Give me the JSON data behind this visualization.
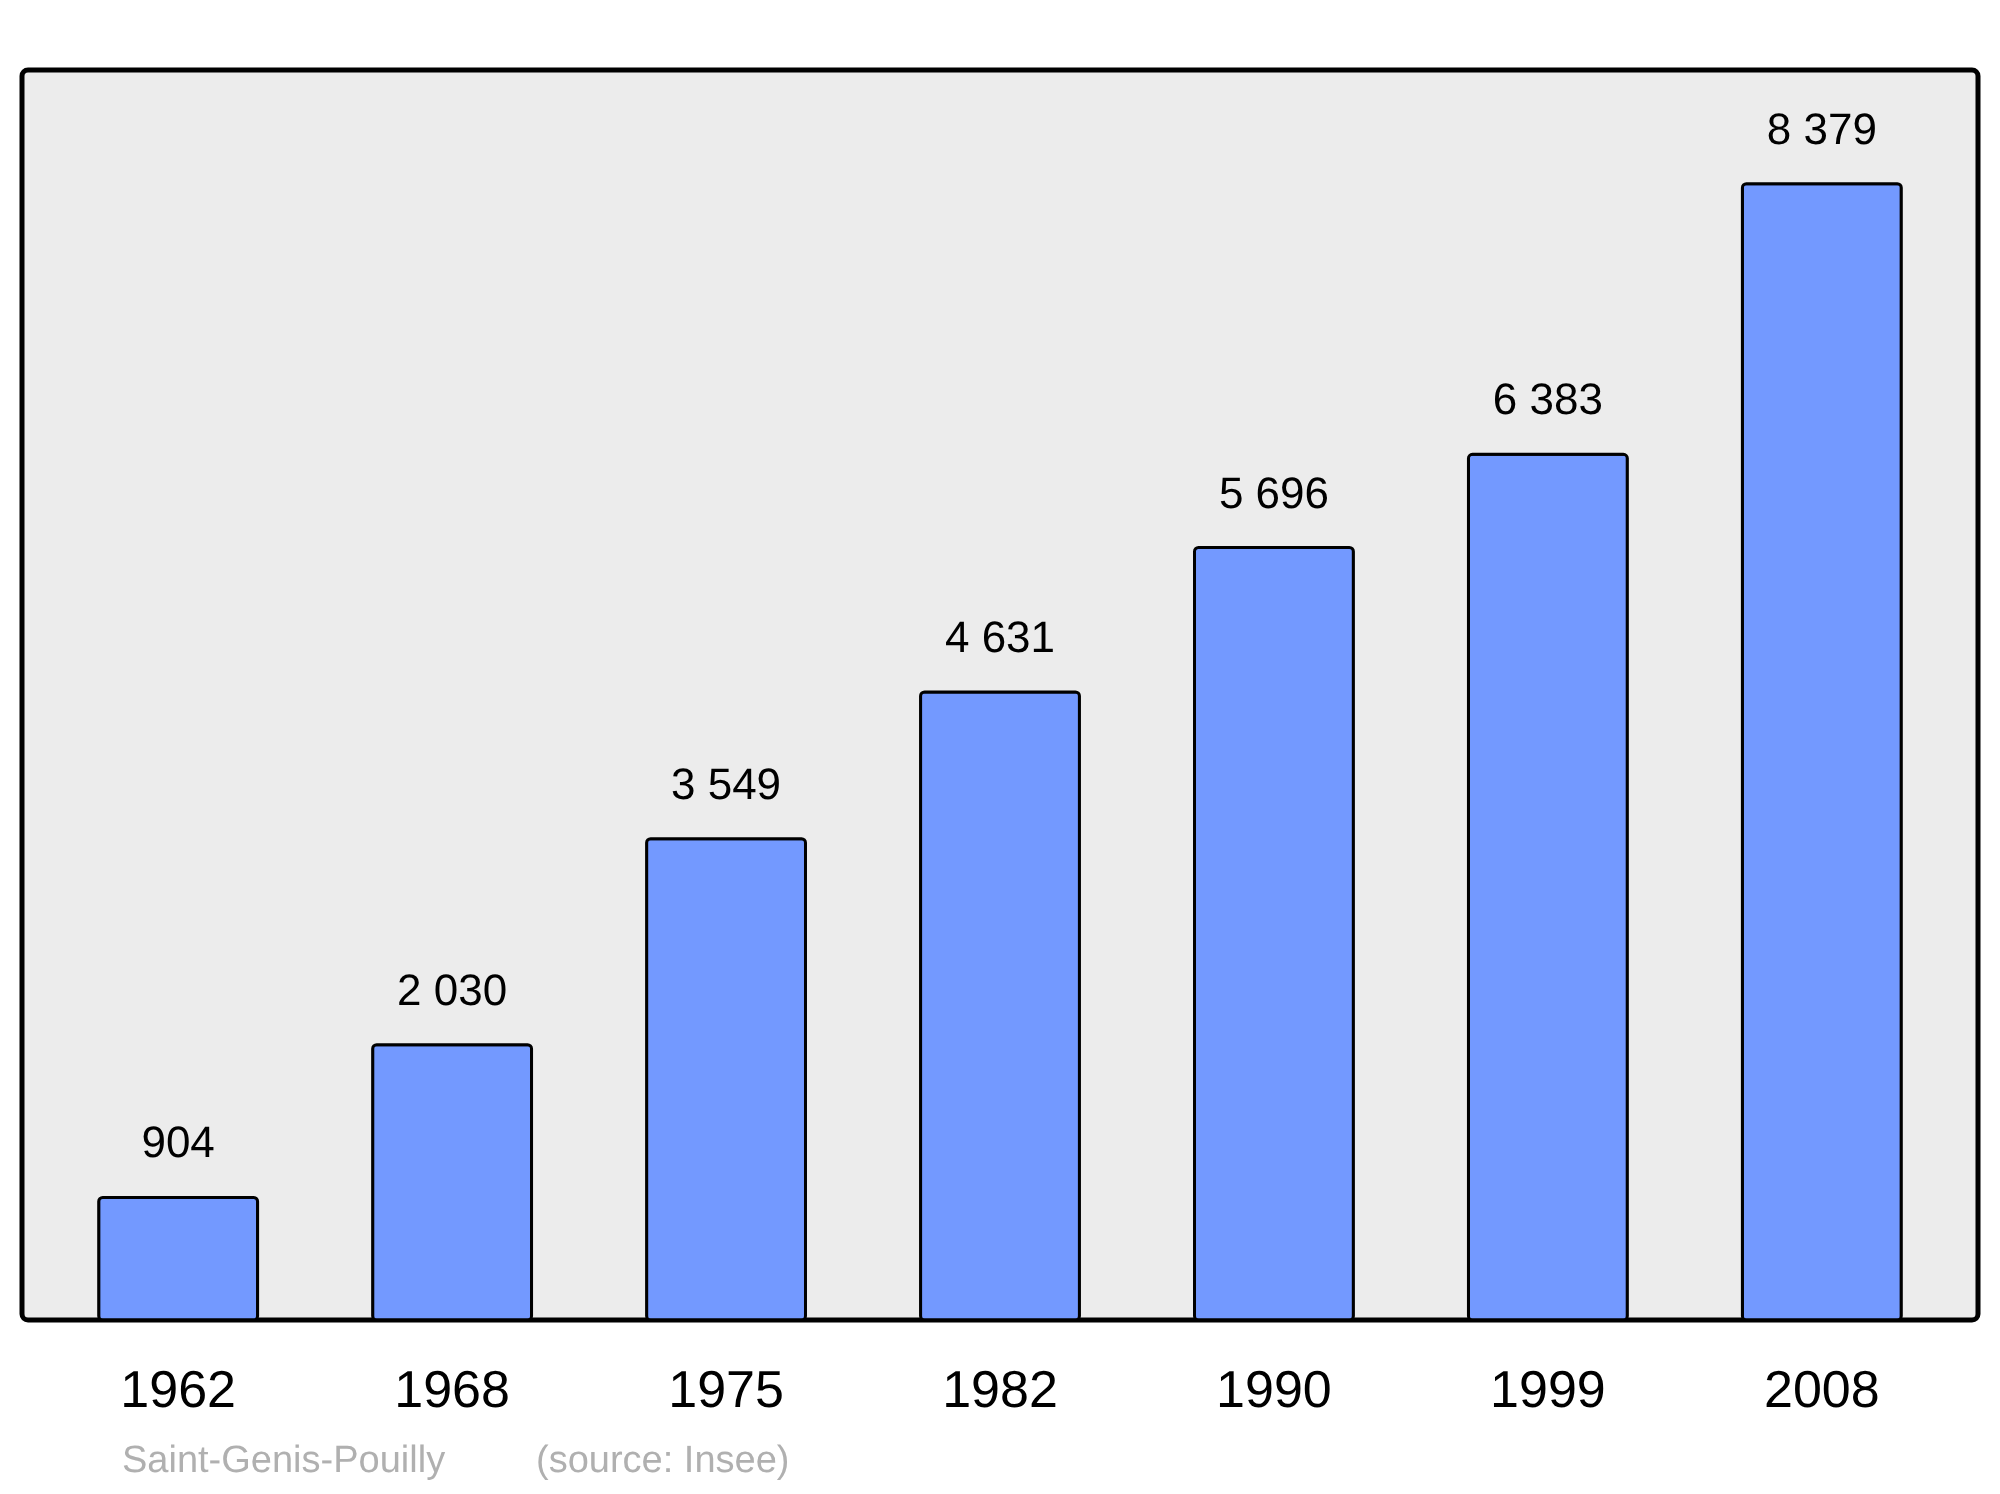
{
  "chart_data": {
    "type": "bar",
    "categories": [
      "1962",
      "1968",
      "1975",
      "1982",
      "1990",
      "1999",
      "2008"
    ],
    "values": [
      904,
      2030,
      3549,
      4631,
      5696,
      6383,
      8379
    ],
    "value_labels": [
      "904",
      "2 030",
      "3 549",
      "4 631",
      "5 696",
      "6 383",
      "8 379"
    ],
    "color": "#7399ff",
    "annotations": [
      "Saint-Genis-Pouilly",
      "(source: Insee)"
    ]
  }
}
